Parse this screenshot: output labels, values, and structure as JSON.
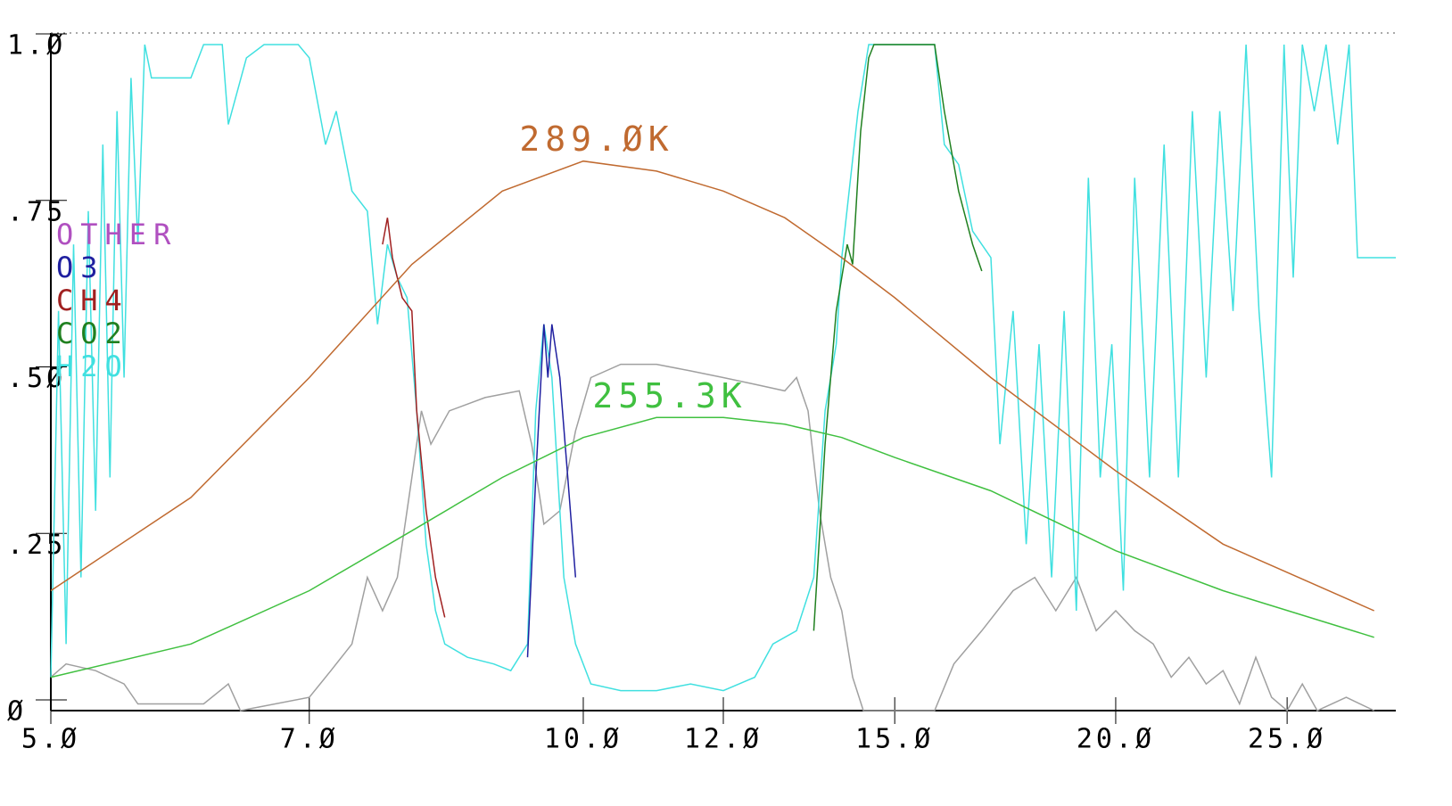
{
  "chart_data": {
    "type": "line",
    "xscale": "log",
    "xlim": [
      5,
      28.8
    ],
    "ylim": [
      0,
      1
    ],
    "xticks": [
      {
        "value": 5,
        "label": "5.Ø"
      },
      {
        "value": 7,
        "label": "7.Ø"
      },
      {
        "value": 10,
        "label": "10.Ø"
      },
      {
        "value": 12,
        "label": "12.Ø"
      },
      {
        "value": 15,
        "label": "15.Ø"
      },
      {
        "value": 20,
        "label": "20.Ø"
      },
      {
        "value": 25,
        "label": "25.Ø"
      }
    ],
    "yticks": [
      {
        "value": 0,
        "label": "Ø"
      },
      {
        "value": 0.25,
        "label": ".25"
      },
      {
        "value": 0.5,
        "label": ".5Ø"
      },
      {
        "value": 0.75,
        "label": ".75"
      },
      {
        "value": 1,
        "label": "1.Ø"
      }
    ],
    "series": [
      {
        "name": "OTHER",
        "color": "#b050c0",
        "x": [],
        "values": []
      },
      {
        "name": "O3",
        "color": "#2020a0",
        "x": [
          9.3,
          9.4,
          9.5,
          9.55,
          9.6,
          9.7,
          9.8,
          9.9
        ],
        "values": [
          0.08,
          0.35,
          0.58,
          0.5,
          0.58,
          0.5,
          0.35,
          0.2
        ]
      },
      {
        "name": "CH4",
        "color": "#a02020",
        "x": [
          7.7,
          7.75,
          7.8,
          7.9,
          8.0,
          8.05,
          8.15,
          8.25,
          8.35
        ],
        "values": [
          0.7,
          0.74,
          0.68,
          0.62,
          0.6,
          0.45,
          0.3,
          0.2,
          0.14
        ]
      },
      {
        "name": "CO2",
        "color": "#208020",
        "x": [
          13.5,
          13.7,
          13.9,
          14.1,
          14.2,
          14.35,
          14.5,
          14.6,
          15.8,
          16.0,
          16.3,
          16.6,
          16.8
        ],
        "values": [
          0.12,
          0.4,
          0.6,
          0.7,
          0.67,
          0.87,
          0.98,
          1.0,
          1.0,
          0.9,
          0.78,
          0.7,
          0.66
        ]
      },
      {
        "name": "H2O",
        "color": "#40e0e0",
        "x": [
          5.0,
          5.05,
          5.1,
          5.15,
          5.2,
          5.25,
          5.3,
          5.35,
          5.4,
          5.45,
          5.5,
          5.55,
          5.6,
          5.65,
          5.7,
          6.0,
          6.1,
          6.25,
          6.3,
          6.45,
          6.6,
          6.9,
          7.0,
          7.15,
          7.25,
          7.4,
          7.55,
          7.65,
          7.75,
          7.85,
          7.95,
          8.05,
          8.15,
          8.25,
          8.35,
          8.6,
          8.9,
          9.1,
          9.3,
          9.4,
          9.5,
          9.6,
          9.75,
          9.9,
          10.1,
          10.5,
          11.0,
          11.5,
          12.0,
          12.5,
          12.8,
          13.2,
          13.5,
          13.7,
          13.9,
          14.0,
          14.3,
          14.5,
          15.8,
          16.0,
          16.3,
          16.6,
          17.0,
          17.2,
          17.5,
          17.8,
          18.1,
          18.4,
          18.7,
          19.0,
          19.3,
          19.6,
          19.9,
          20.2,
          20.5,
          20.9,
          21.3,
          21.7,
          22.1,
          22.5,
          22.9,
          23.3,
          23.7,
          24.1,
          24.5,
          24.9,
          25.2,
          25.5,
          25.9,
          26.3,
          26.7,
          27.1,
          27.4,
          28.8
        ],
        "values": [
          0.05,
          0.6,
          0.1,
          0.7,
          0.2,
          0.75,
          0.3,
          0.85,
          0.35,
          0.9,
          0.5,
          0.95,
          0.7,
          1.0,
          0.95,
          0.95,
          1.0,
          1.0,
          0.88,
          0.98,
          1.0,
          1.0,
          0.98,
          0.85,
          0.9,
          0.78,
          0.75,
          0.58,
          0.7,
          0.65,
          0.62,
          0.45,
          0.25,
          0.15,
          0.1,
          0.08,
          0.07,
          0.06,
          0.1,
          0.45,
          0.58,
          0.5,
          0.2,
          0.1,
          0.04,
          0.03,
          0.03,
          0.04,
          0.03,
          0.05,
          0.1,
          0.12,
          0.2,
          0.45,
          0.55,
          0.68,
          0.9,
          1.0,
          1.0,
          0.85,
          0.82,
          0.72,
          0.68,
          0.4,
          0.6,
          0.25,
          0.55,
          0.2,
          0.6,
          0.15,
          0.8,
          0.35,
          0.55,
          0.18,
          0.8,
          0.35,
          0.85,
          0.35,
          0.9,
          0.5,
          0.9,
          0.6,
          1.0,
          0.6,
          0.35,
          1.0,
          0.65,
          1.0,
          0.9,
          1.0,
          0.85,
          1.0,
          0.68,
          0.68
        ]
      },
      {
        "color": "#a0a0a0",
        "x": [
          5.0,
          5.1,
          5.3,
          5.5,
          5.6,
          6.1,
          6.3,
          6.4,
          7.0,
          7.2,
          7.4,
          7.55,
          7.7,
          7.85,
          8.0,
          8.1,
          8.2,
          8.4,
          8.8,
          9.2,
          9.35,
          9.5,
          9.7,
          9.9,
          10.1,
          10.5,
          11.0,
          11.5,
          12.0,
          12.5,
          13.0,
          13.2,
          13.4,
          13.6,
          13.8,
          14.0,
          14.2,
          14.4,
          15.8,
          16.2,
          16.8,
          17.5,
          18.0,
          18.5,
          19.0,
          19.5,
          20.0,
          20.5,
          21.0,
          21.5,
          22.0,
          22.5,
          23.0,
          23.5,
          24.0,
          24.5,
          25.0,
          25.5,
          26.0,
          27.0,
          28.0
        ],
        "values": [
          0.05,
          0.07,
          0.06,
          0.04,
          0.01,
          0.01,
          0.04,
          0.0,
          0.02,
          0.06,
          0.1,
          0.2,
          0.15,
          0.2,
          0.35,
          0.45,
          0.4,
          0.45,
          0.47,
          0.48,
          0.4,
          0.28,
          0.3,
          0.42,
          0.5,
          0.52,
          0.52,
          0.51,
          0.5,
          0.49,
          0.48,
          0.5,
          0.45,
          0.3,
          0.2,
          0.15,
          0.05,
          0.0,
          0.0,
          0.07,
          0.12,
          0.18,
          0.2,
          0.15,
          0.2,
          0.12,
          0.15,
          0.12,
          0.1,
          0.05,
          0.08,
          0.04,
          0.06,
          0.01,
          0.08,
          0.02,
          0.0,
          0.04,
          0.0,
          0.02,
          0.0
        ]
      }
    ],
    "curves": [
      {
        "name": "289.ØK",
        "color": "#c06a30",
        "x": [
          5.0,
          6.0,
          7.0,
          8.0,
          9.0,
          10.0,
          11.0,
          12.0,
          13.0,
          14.0,
          15.0,
          17.0,
          20.0,
          23.0,
          28.0
        ],
        "values": [
          0.18,
          0.32,
          0.5,
          0.67,
          0.78,
          0.825,
          0.81,
          0.78,
          0.74,
          0.68,
          0.62,
          0.5,
          0.36,
          0.25,
          0.15
        ]
      },
      {
        "name": "255.3K",
        "color": "#40c040",
        "x": [
          5.0,
          6.0,
          7.0,
          8.0,
          9.0,
          10.0,
          11.0,
          12.0,
          13.0,
          14.0,
          15.0,
          17.0,
          20.0,
          23.0,
          28.0
        ],
        "values": [
          0.05,
          0.1,
          0.18,
          0.27,
          0.35,
          0.41,
          0.44,
          0.44,
          0.43,
          0.41,
          0.38,
          0.33,
          0.24,
          0.18,
          0.11
        ]
      }
    ]
  }
}
